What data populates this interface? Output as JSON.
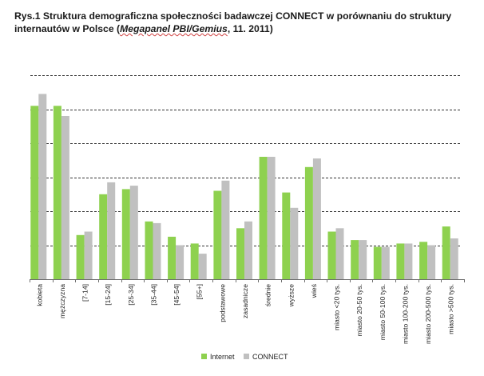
{
  "header": {
    "title_main": "Rys.1 Struktura demograficzna społeczności badawczej CONNECT w porównaniu do struktury internautów w Polsce (",
    "title_source": "Megapanel PBI/Gemius",
    "title_tail": ", 11. 2011)"
  },
  "colors": {
    "internet": "#8ed14f",
    "connect": "#c0c0c0",
    "grid": "#333333",
    "axis": "#6e6e6e"
  },
  "chart_data": {
    "type": "bar",
    "title": "Rys.1 Struktura demograficzna społeczności badawczej CONNECT w porównaniu do struktury internautów w Polsce (Megapanel PBI/Gemius, 11. 2011)",
    "xlabel": "",
    "ylabel": "",
    "ylim": [
      0,
      60
    ],
    "grid": true,
    "y_tick_labels_shown": false,
    "legend_position": "bottom-center",
    "categories": [
      "kobieta",
      "mężczyzna",
      "[7-14]",
      "[15-24]",
      "[25-34]",
      "[35-44]",
      "[45-54]",
      "[55+]",
      "podstawowe",
      "zasadnicze",
      "średnie",
      "wyższe",
      "wieś",
      "miasto <20 tys.",
      "miasto 20-50 tys.",
      "miasto 50-100 tys.",
      "miasto 100-200 tys.",
      "miasto 200-500 tys.",
      "miasto >500 tys."
    ],
    "series": [
      {
        "name": "Internet",
        "values": [
          51,
          51,
          13,
          25,
          26.5,
          17,
          12.5,
          10.5,
          26,
          15,
          36,
          25.5,
          33,
          14,
          11.5,
          9.5,
          10.5,
          11,
          15.5
        ]
      },
      {
        "name": "CONNECT",
        "values": [
          54.5,
          48,
          14,
          28.5,
          27.5,
          16.5,
          10,
          7.5,
          29,
          17,
          36,
          21,
          35.5,
          15,
          11.5,
          9.5,
          10.5,
          10,
          12
        ]
      }
    ]
  }
}
